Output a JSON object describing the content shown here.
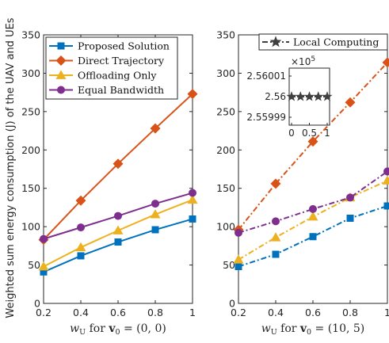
{
  "ylabel": "Weighted sum energy consumption (J) of the UAV and UEs",
  "chart_data": [
    {
      "type": "line",
      "xlabel": "w_U for v_0 = (0,0)",
      "xlabel_parts": {
        "w": "w",
        "sub": "U",
        "for": " for ",
        "v": "v",
        "vsub": "0",
        "rest": " = (0, 0)"
      },
      "x": [
        0.2,
        0.4,
        0.6,
        0.8,
        1
      ],
      "xticks": [
        "0.2",
        "0.4",
        "0.6",
        "0.8",
        "1"
      ],
      "yticks": [
        "0",
        "50",
        "100",
        "150",
        "200",
        "250",
        "300",
        "350"
      ],
      "xlim": [
        0.2,
        1
      ],
      "ylim": [
        0,
        350
      ],
      "legend_position": "top-left",
      "series": [
        {
          "name": "Proposed Solution",
          "color": "#0072BD",
          "marker": "square",
          "line": "solid",
          "values": [
            41,
            62,
            80,
            96,
            110
          ]
        },
        {
          "name": "Direct Trajectory",
          "color": "#D95319",
          "marker": "diamond",
          "line": "solid",
          "values": [
            83,
            134,
            182,
            228,
            273
          ]
        },
        {
          "name": "Offloading Only",
          "color": "#EDB120",
          "marker": "triangle",
          "line": "solid",
          "values": [
            48,
            73,
            95,
            116,
            135
          ]
        },
        {
          "name": "Equal Bandwidth",
          "color": "#7E2F8E",
          "marker": "circle",
          "line": "solid",
          "values": [
            84,
            99,
            114,
            130,
            144
          ]
        }
      ]
    },
    {
      "type": "line",
      "xlabel": "w_U for v_0 = (10,5)",
      "xlabel_parts": {
        "w": "w",
        "sub": "U",
        "for": " for ",
        "v": "v",
        "vsub": "0",
        "rest": " = (10, 5)"
      },
      "x": [
        0.2,
        0.4,
        0.6,
        0.8,
        1
      ],
      "xticks": [
        "0.2",
        "0.4",
        "0.6",
        "0.8",
        "1"
      ],
      "yticks": [
        "0",
        "50",
        "100",
        "150",
        "200",
        "250",
        "300",
        "350"
      ],
      "xlim": [
        0.2,
        1
      ],
      "ylim": [
        0,
        350
      ],
      "legend_position": "top-right",
      "series": [
        {
          "name": "Proposed Solution",
          "color": "#0072BD",
          "marker": "square",
          "line": "dashdot",
          "values": [
            48,
            64,
            87,
            111,
            127
          ]
        },
        {
          "name": "Direct Trajectory",
          "color": "#D95319",
          "marker": "diamond",
          "line": "dashdot",
          "values": [
            96,
            156,
            211,
            262,
            314
          ]
        },
        {
          "name": "Offloading Only",
          "color": "#EDB120",
          "marker": "triangle",
          "line": "dashdot",
          "values": [
            57,
            86,
            113,
            138,
            160
          ]
        },
        {
          "name": "Equal Bandwidth",
          "color": "#7E2F8E",
          "marker": "circle",
          "line": "dashdot",
          "values": [
            92,
            107,
            123,
            138,
            172
          ]
        }
      ],
      "legend": [
        {
          "name": "Local Computing",
          "color": "#404040",
          "marker": "star",
          "line": "dashdot"
        }
      ],
      "inset": {
        "type": "line",
        "x": [
          0,
          0.25,
          0.5,
          0.75,
          1
        ],
        "values": [
          256000,
          256000,
          256000,
          256000,
          256000
        ],
        "xticks": [
          "0",
          "0.5",
          "1"
        ],
        "yticks": [
          "2.55999",
          "2.56",
          "2.56001"
        ],
        "exponent_base": "×10",
        "exponent": "5",
        "color": "#404040",
        "marker": "star"
      }
    }
  ]
}
